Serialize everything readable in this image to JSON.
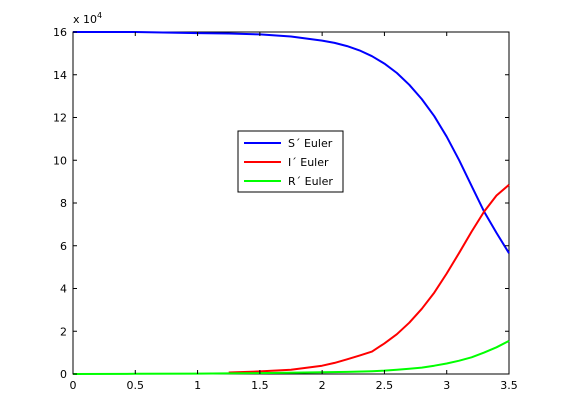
{
  "chart_data": {
    "type": "line",
    "title": "",
    "xlabel": "",
    "ylabel": "",
    "y_exponent_label": "x 10",
    "y_exponent_power": "4",
    "xlim": [
      0,
      3.5
    ],
    "ylim": [
      0,
      160000
    ],
    "x_ticks": [
      0,
      0.5,
      1,
      1.5,
      2,
      2.5,
      3,
      3.5
    ],
    "x_tick_labels": [
      "0",
      "0.5",
      "1",
      "1.5",
      "2",
      "2.5",
      "3",
      "3.5"
    ],
    "y_ticks": [
      0,
      20000,
      40000,
      60000,
      80000,
      100000,
      120000,
      140000,
      160000
    ],
    "y_tick_labels": [
      "0",
      "2",
      "4",
      "6",
      "8",
      "10",
      "12",
      "14",
      "16"
    ],
    "grid": false,
    "legend_position": "center",
    "series": [
      {
        "name": "S´ Euler",
        "color": "#0000ff",
        "x": [
          0,
          0.5,
          1,
          1.25,
          1.5,
          1.75,
          2,
          2.1,
          2.2,
          2.3,
          2.4,
          2.5,
          2.6,
          2.7,
          2.8,
          2.9,
          3.0,
          3.1,
          3.2,
          3.3,
          3.4,
          3.5
        ],
        "y": [
          160000,
          160000,
          159500,
          159300,
          158900,
          157900,
          156000,
          154900,
          153400,
          151400,
          148700,
          145200,
          140800,
          135300,
          128600,
          120600,
          111000,
          100000,
          88000,
          76000,
          66000,
          56500
        ]
      },
      {
        "name": "I´ Euler",
        "color": "#ff0000",
        "x": [
          1.25,
          1.5,
          1.75,
          2,
          2.1,
          2.2,
          2.3,
          2.4,
          2.5,
          2.6,
          2.7,
          2.8,
          2.9,
          3.0,
          3.1,
          3.2,
          3.3,
          3.4,
          3.5
        ],
        "y": [
          700,
          1200,
          2000,
          3900,
          5200,
          6900,
          8600,
          10500,
          14300,
          18600,
          24000,
          30500,
          38100,
          47000,
          56700,
          66600,
          76000,
          83500,
          88500
        ]
      },
      {
        "name": "R´ Euler",
        "color": "#00ff00",
        "x": [
          0,
          0.5,
          1,
          1.5,
          2,
          2.2,
          2.4,
          2.5,
          2.6,
          2.7,
          2.8,
          2.9,
          3.0,
          3.1,
          3.2,
          3.3,
          3.4,
          3.5
        ],
        "y": [
          0,
          100,
          200,
          400,
          800,
          1000,
          1300,
          1600,
          2000,
          2500,
          3000,
          3900,
          4900,
          6200,
          7800,
          10000,
          12500,
          15500
        ]
      }
    ]
  }
}
